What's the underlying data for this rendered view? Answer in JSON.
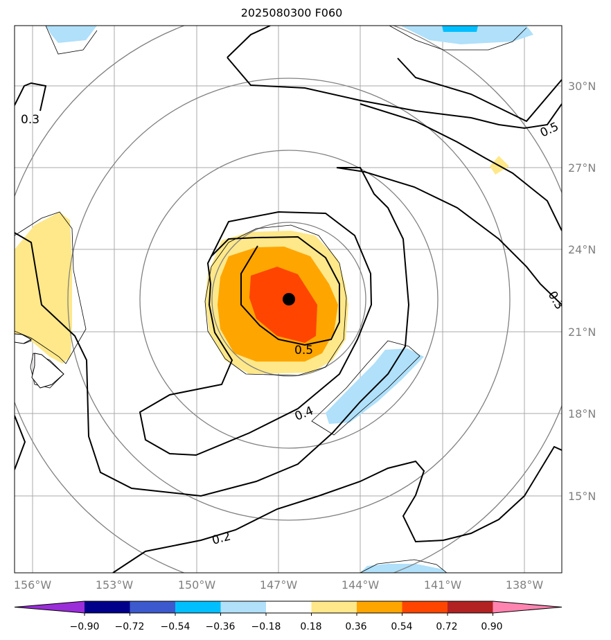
{
  "title": "2025080300 F060",
  "map": {
    "lon_ticks": [
      "156°W",
      "153°W",
      "150°W",
      "147°W",
      "144°W",
      "141°W",
      "138°W"
    ],
    "lat_ticks": [
      "30°N",
      "27°N",
      "24°N",
      "21°N",
      "18°N",
      "15°N"
    ],
    "contour_labels": [
      "0.3",
      "0.5",
      "0.5",
      "0.4",
      "0.3",
      "0.2"
    ],
    "storm_center": {
      "lon": -146.7,
      "lat": 22.2
    },
    "colors": {
      "grid": "#a9a9a9",
      "range_rings": "#808080",
      "contours": "#000000",
      "neg_fill": "#b0e0fa",
      "pos_036": "#ffe88a",
      "pos_054": "#ffa500",
      "pos_072": "#ff4500"
    }
  },
  "colorbar": {
    "ticks": [
      "−0.90",
      "−0.72",
      "−0.54",
      "−0.36",
      "−0.18",
      "0.18",
      "0.36",
      "0.54",
      "0.72",
      "0.90"
    ],
    "colors": [
      "#9a2ed8",
      "#00008b",
      "#3c5acd",
      "#00bfff",
      "#b0e0fa",
      "#ffffff",
      "#ffe88a",
      "#ffa500",
      "#ff4500",
      "#b22222",
      "#ff85b0"
    ]
  }
}
